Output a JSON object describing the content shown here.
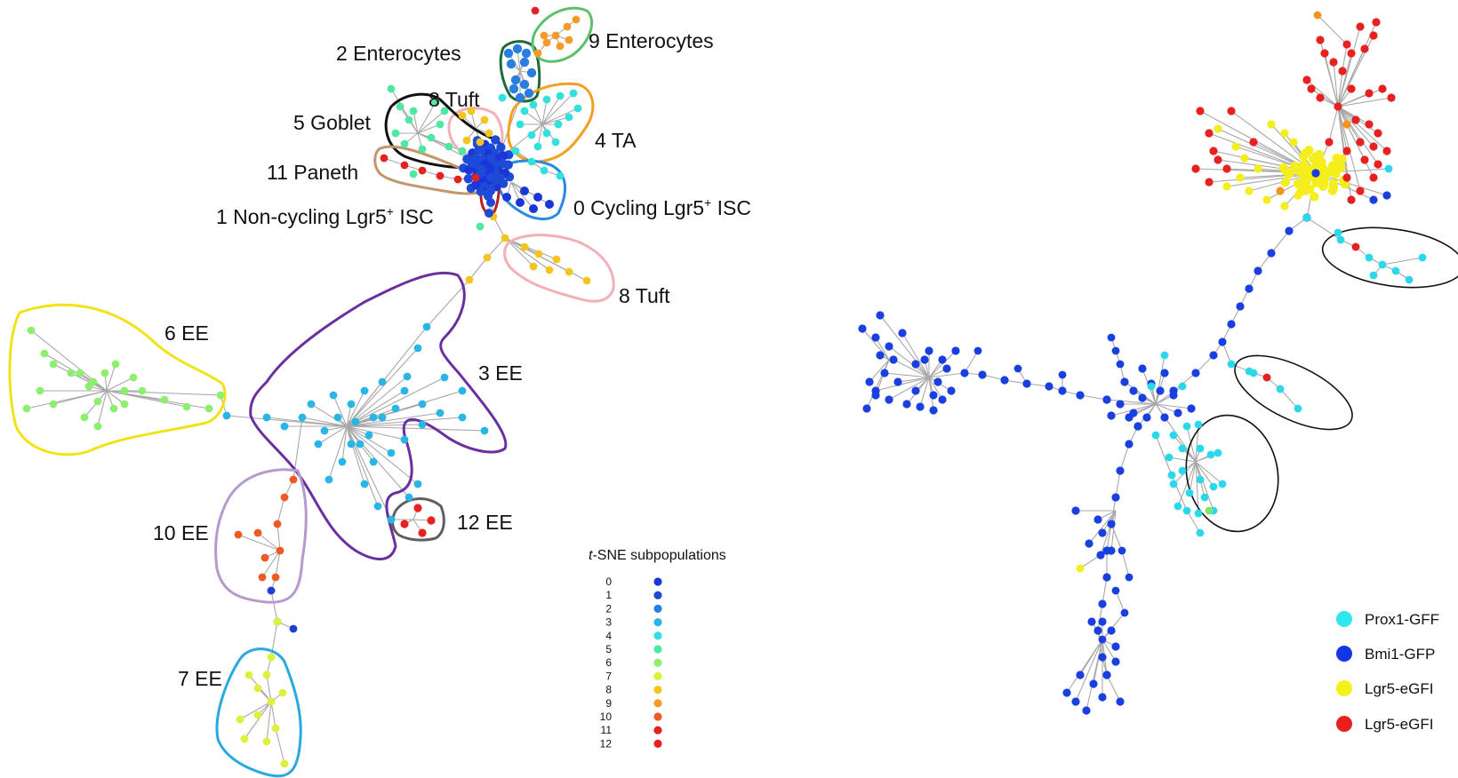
{
  "left_panel": {
    "clusters": [
      {
        "id": "0",
        "label": "0 Cycling Lgr5",
        "sup": "+",
        "suffix": " ISC",
        "color": "#1f3fdd"
      },
      {
        "id": "1",
        "label": "1 Non-cycling Lgr5",
        "sup": "+",
        "suffix": " ISC",
        "color": "#1d4bd8"
      },
      {
        "id": "2",
        "label": "2 Enterocytes",
        "sup": "",
        "suffix": "",
        "color": "#2a7de1"
      },
      {
        "id": "3",
        "label": "3 EE",
        "sup": "",
        "suffix": "",
        "color": "#29b6e6"
      },
      {
        "id": "4",
        "label": "4 TA",
        "sup": "",
        "suffix": "",
        "color": "#32e0de"
      },
      {
        "id": "5",
        "label": "5 Goblet",
        "sup": "",
        "suffix": "",
        "color": "#4ee8a0"
      },
      {
        "id": "6",
        "label": "6 EE",
        "sup": "",
        "suffix": "",
        "color": "#8cf06e"
      },
      {
        "id": "7",
        "label": "7 EE",
        "sup": "",
        "suffix": "",
        "color": "#dff03c"
      },
      {
        "id": "8a",
        "label": "8 Tuft",
        "sup": "",
        "suffix": "",
        "color": "#f5c51f"
      },
      {
        "id": "8b",
        "label": "8 Tuft",
        "sup": "",
        "suffix": "",
        "color": "#f5c51f"
      },
      {
        "id": "9",
        "label": "9 Enterocytes",
        "sup": "",
        "suffix": "",
        "color": "#f59a27"
      },
      {
        "id": "10",
        "label": "10 EE",
        "sup": "",
        "suffix": "",
        "color": "#ef5a24"
      },
      {
        "id": "11",
        "label": "11 Paneth",
        "sup": "",
        "suffix": "",
        "color": "#e8201f"
      },
      {
        "id": "12",
        "label": "12 EE",
        "sup": "",
        "suffix": "",
        "color": "#e8201f"
      }
    ],
    "legend": {
      "title_italic": "t",
      "title_rest": "-SNE subpopulations",
      "entries": [
        {
          "num": "0",
          "color": "#1a36d9"
        },
        {
          "num": "1",
          "color": "#1d4bd8"
        },
        {
          "num": "2",
          "color": "#2a7de1"
        },
        {
          "num": "3",
          "color": "#29b6e6"
        },
        {
          "num": "4",
          "color": "#32e0de"
        },
        {
          "num": "5",
          "color": "#4ee8a0"
        },
        {
          "num": "6",
          "color": "#8cf06e"
        },
        {
          "num": "7",
          "color": "#dff03c"
        },
        {
          "num": "8",
          "color": "#f5c51f"
        },
        {
          "num": "9",
          "color": "#f59a27"
        },
        {
          "num": "10",
          "color": "#ef5a24"
        },
        {
          "num": "11",
          "color": "#e8201f"
        },
        {
          "num": "12",
          "color": "#e8201f"
        }
      ]
    }
  },
  "right_panel": {
    "legend": [
      {
        "label": "Prox1-GFF",
        "color": "#2fe6f0"
      },
      {
        "label": "Bmi1-GFP",
        "color": "#1236e6"
      },
      {
        "label": "Lgr5-eGFI",
        "color": "#f6f01a"
      },
      {
        "label": "Lgr5-eGFI",
        "color": "#e8201f"
      }
    ]
  },
  "colors": {
    "blue": "#1a3fe0",
    "cyan": "#2ad8ec",
    "yellow": "#f4ee1c",
    "red": "#e8201f",
    "orange": "#f5921f",
    "green": "#7ee46a"
  }
}
